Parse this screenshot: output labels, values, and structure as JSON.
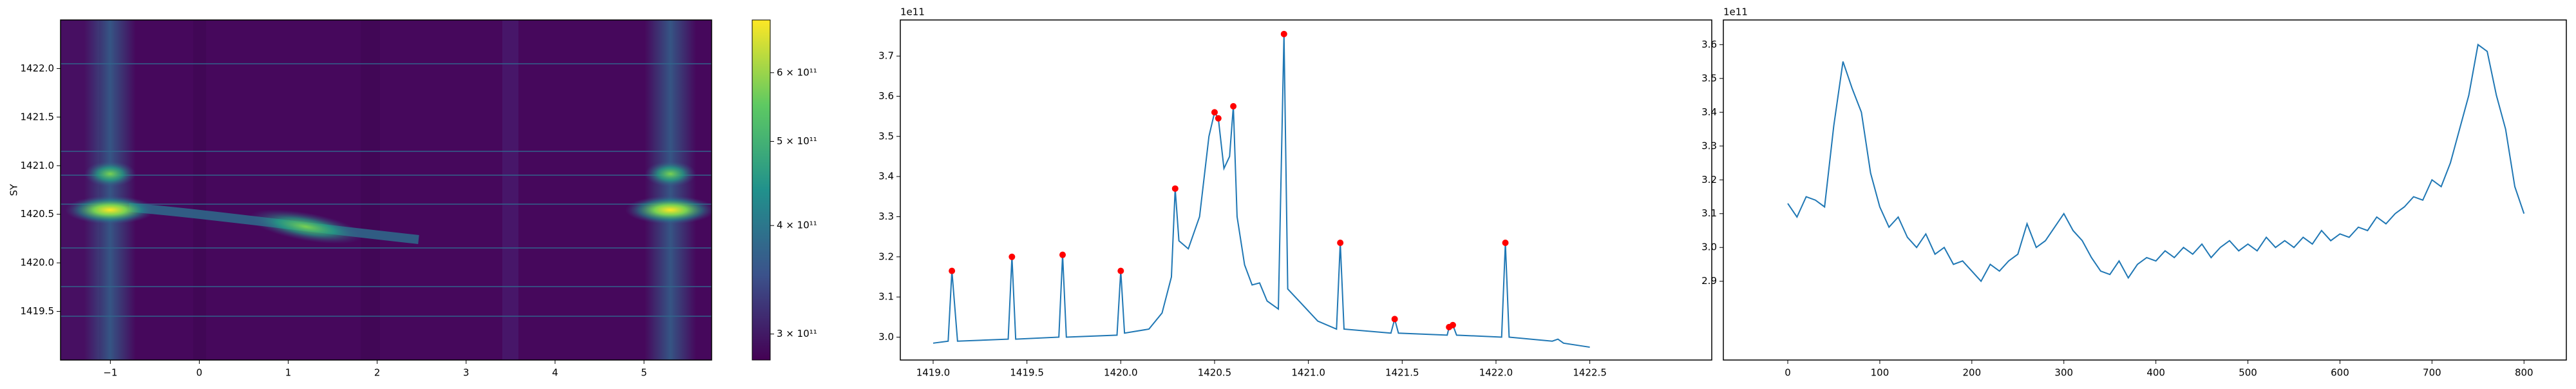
{
  "chart_data": [
    {
      "type": "heatmap",
      "ylabel": "SY",
      "xlim": [
        -1.56,
        5.76
      ],
      "ylim": [
        1419.0,
        1422.5
      ],
      "xticks": [
        {
          "value": -1,
          "label": "−1"
        },
        0,
        1,
        2,
        3,
        4,
        5
      ],
      "yticks": [
        1419.5,
        {
          "value": 1420,
          "label": "1420.0"
        },
        1420.5,
        {
          "value": 1421,
          "label": "1421.0"
        },
        1421.5,
        {
          "value": 1422,
          "label": "1422.0"
        }
      ],
      "colorbar": {
        "scale": "log",
        "colormap": "viridis",
        "lim": [
          280000000000,
          690000000000
        ],
        "ticks": [
          {
            "value": 300000000000,
            "label": "3 × 10¹¹"
          },
          {
            "value": 400000000000,
            "label": "4 × 10¹¹"
          },
          {
            "value": 500000000000,
            "label": "5 × 10¹¹"
          },
          {
            "value": 600000000000,
            "label": "6 × 10¹¹"
          }
        ]
      }
    },
    {
      "type": "line",
      "offset_text": "1e11",
      "xlim": [
        1418.825,
        1423.15
      ],
      "ylim": [
        2.943,
        3.79
      ],
      "xticks": [
        {
          "value": 1419,
          "label": "1419.0"
        },
        1419.5,
        {
          "value": 1420,
          "label": "1420.0"
        },
        1420.5,
        {
          "value": 1421,
          "label": "1421.0"
        },
        1421.5,
        {
          "value": 1422,
          "label": "1422.0"
        },
        1422.5
      ],
      "yticks": [
        {
          "value": 3,
          "label": "3.0"
        },
        3.1,
        3.2,
        3.3,
        3.4,
        3.5,
        3.6,
        3.7
      ],
      "x": [
        1419.0,
        1419.08,
        1419.1,
        1419.13,
        1419.4,
        1419.42,
        1419.44,
        1419.67,
        1419.69,
        1419.71,
        1419.98,
        1420.0,
        1420.02,
        1420.15,
        1420.22,
        1420.27,
        1420.29,
        1420.31,
        1420.36,
        1420.42,
        1420.47,
        1420.5,
        1420.52,
        1420.55,
        1420.58,
        1420.6,
        1420.62,
        1420.66,
        1420.7,
        1420.74,
        1420.78,
        1420.84,
        1420.87,
        1420.89,
        1420.95,
        1421.05,
        1421.15,
        1421.17,
        1421.19,
        1421.44,
        1421.46,
        1421.48,
        1421.74,
        1421.75,
        1421.77,
        1421.79,
        1422.03,
        1422.05,
        1422.07,
        1422.3,
        1422.33,
        1422.36,
        1422.5
      ],
      "series": [
        {
          "color": "#1f77b4",
          "values": [
            2.985,
            2.99,
            3.165,
            2.99,
            2.995,
            3.2,
            2.995,
            3.0,
            3.205,
            3.0,
            3.005,
            3.165,
            3.01,
            3.02,
            3.06,
            3.15,
            3.37,
            3.24,
            3.22,
            3.3,
            3.5,
            3.56,
            3.545,
            3.42,
            3.45,
            3.575,
            3.3,
            3.18,
            3.13,
            3.135,
            3.09,
            3.07,
            3.755,
            3.12,
            3.09,
            3.04,
            3.02,
            3.235,
            3.02,
            3.01,
            3.045,
            3.01,
            3.005,
            3.025,
            3.03,
            3.005,
            3.0,
            3.235,
            3.0,
            2.99,
            2.995,
            2.985,
            2.975
          ]
        }
      ],
      "markers": {
        "color": "#ff0000",
        "x": [
          1419.1,
          1419.42,
          1419.69,
          1420.0,
          1420.29,
          1420.5,
          1420.52,
          1420.6,
          1420.87,
          1421.17,
          1421.46,
          1421.75,
          1421.77,
          1422.05
        ],
        "values": [
          3.165,
          3.2,
          3.205,
          3.165,
          3.37,
          3.56,
          3.545,
          3.575,
          3.755,
          3.235,
          3.045,
          3.025,
          3.03,
          3.235
        ]
      }
    },
    {
      "type": "line",
      "offset_text": "1e11",
      "xlim": [
        -70,
        846
      ],
      "ylim": [
        2.667,
        3.673
      ],
      "xticks": [
        0,
        100,
        200,
        300,
        400,
        500,
        600,
        700,
        800
      ],
      "yticks": [
        2.9,
        {
          "value": 3,
          "label": "3.0"
        },
        3.1,
        3.2,
        3.3,
        3.4,
        3.5,
        3.6
      ],
      "x": [
        0,
        10,
        20,
        30,
        40,
        50,
        60,
        70,
        80,
        90,
        100,
        110,
        120,
        130,
        140,
        150,
        160,
        170,
        180,
        190,
        200,
        210,
        220,
        230,
        240,
        250,
        260,
        270,
        280,
        290,
        300,
        310,
        320,
        330,
        340,
        350,
        360,
        370,
        380,
        390,
        400,
        410,
        420,
        430,
        440,
        450,
        460,
        470,
        480,
        490,
        500,
        510,
        520,
        530,
        540,
        550,
        560,
        570,
        580,
        590,
        600,
        610,
        620,
        630,
        640,
        650,
        660,
        670,
        680,
        690,
        700,
        710,
        720,
        730,
        740,
        750,
        760,
        770,
        780,
        790,
        800
      ],
      "series": [
        {
          "color": "#1f77b4",
          "values": [
            3.13,
            3.09,
            3.15,
            3.14,
            3.12,
            3.36,
            3.55,
            3.47,
            3.4,
            3.22,
            3.12,
            3.06,
            3.09,
            3.03,
            3.0,
            3.04,
            2.98,
            3.0,
            2.95,
            2.96,
            2.93,
            2.9,
            2.95,
            2.93,
            2.96,
            2.98,
            3.07,
            3.0,
            3.02,
            3.06,
            3.1,
            3.05,
            3.02,
            2.97,
            2.93,
            2.92,
            2.96,
            2.91,
            2.95,
            2.97,
            2.96,
            2.99,
            2.97,
            3.0,
            2.98,
            3.01,
            2.97,
            3.0,
            3.02,
            2.99,
            3.01,
            2.99,
            3.03,
            3.0,
            3.02,
            3.0,
            3.03,
            3.01,
            3.05,
            3.02,
            3.04,
            3.03,
            3.06,
            3.05,
            3.09,
            3.07,
            3.1,
            3.12,
            3.15,
            3.14,
            3.2,
            3.18,
            3.25,
            3.35,
            3.45,
            3.6,
            3.58,
            3.45,
            3.35,
            3.18,
            3.1
          ]
        }
      ]
    }
  ]
}
